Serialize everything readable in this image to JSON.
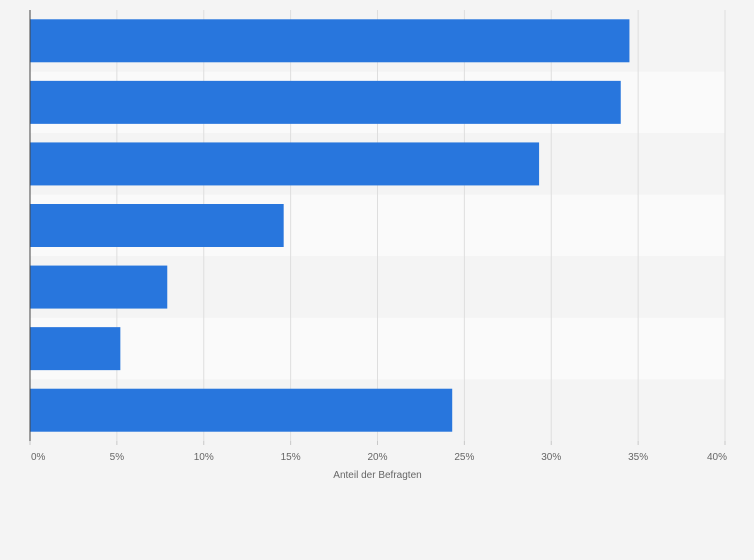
{
  "chart_data": {
    "type": "bar",
    "orientation": "horizontal",
    "categories": [
      "",
      "",
      "",
      "",
      "",
      "",
      ""
    ],
    "values": [
      34.5,
      34.0,
      29.3,
      14.6,
      7.9,
      5.2,
      24.3
    ],
    "xlabel": "Anteil der Befragten",
    "ylabel": "",
    "xlim": [
      0,
      40
    ],
    "ticks": [
      0,
      5,
      10,
      15,
      20,
      25,
      30,
      35,
      40
    ],
    "tick_labels": [
      "0%",
      "5%",
      "10%",
      "15%",
      "20%",
      "25%",
      "30%",
      "35%",
      "40%"
    ],
    "grid": true,
    "bar_color": "#2876dd",
    "band_colors": [
      "#f4f4f4",
      "#fafafa"
    ],
    "grid_color": "#dedede",
    "axis_color": "#444444"
  }
}
